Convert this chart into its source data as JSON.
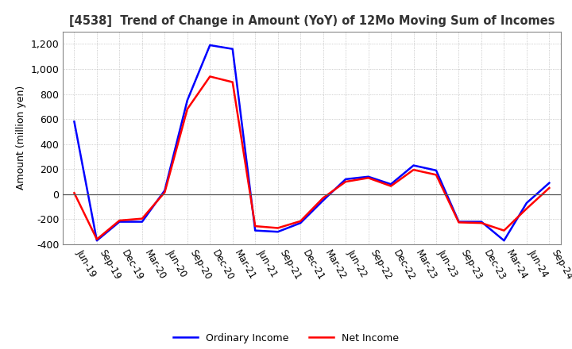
{
  "title": "[4538]  Trend of Change in Amount (YoY) of 12Mo Moving Sum of Incomes",
  "ylabel": "Amount (million yen)",
  "ylim": [
    -400,
    1300
  ],
  "yticks": [
    -400,
    -200,
    0,
    200,
    400,
    600,
    800,
    1000,
    1200
  ],
  "x_labels": [
    "Jun-19",
    "Sep-19",
    "Dec-19",
    "Mar-20",
    "Jun-20",
    "Sep-20",
    "Dec-20",
    "Mar-21",
    "Jun-21",
    "Sep-21",
    "Dec-21",
    "Mar-22",
    "Jun-22",
    "Sep-22",
    "Dec-22",
    "Mar-23",
    "Jun-23",
    "Sep-23",
    "Dec-23",
    "Mar-24",
    "Jun-24",
    "Sep-24"
  ],
  "ordinary_income": [
    580,
    -370,
    -220,
    -220,
    30,
    750,
    1190,
    1160,
    -290,
    -300,
    -230,
    -50,
    120,
    140,
    80,
    230,
    190,
    -220,
    -220,
    -370,
    -70,
    90
  ],
  "net_income": [
    10,
    -360,
    -210,
    -195,
    15,
    680,
    940,
    895,
    -255,
    -270,
    -215,
    -30,
    100,
    130,
    65,
    195,
    155,
    -225,
    -230,
    -290,
    -115,
    50
  ],
  "ordinary_color": "#0000ff",
  "net_color": "#ff0000",
  "grid_color": "#aaaaaa",
  "background_color": "#ffffff",
  "box_color": "#888888"
}
